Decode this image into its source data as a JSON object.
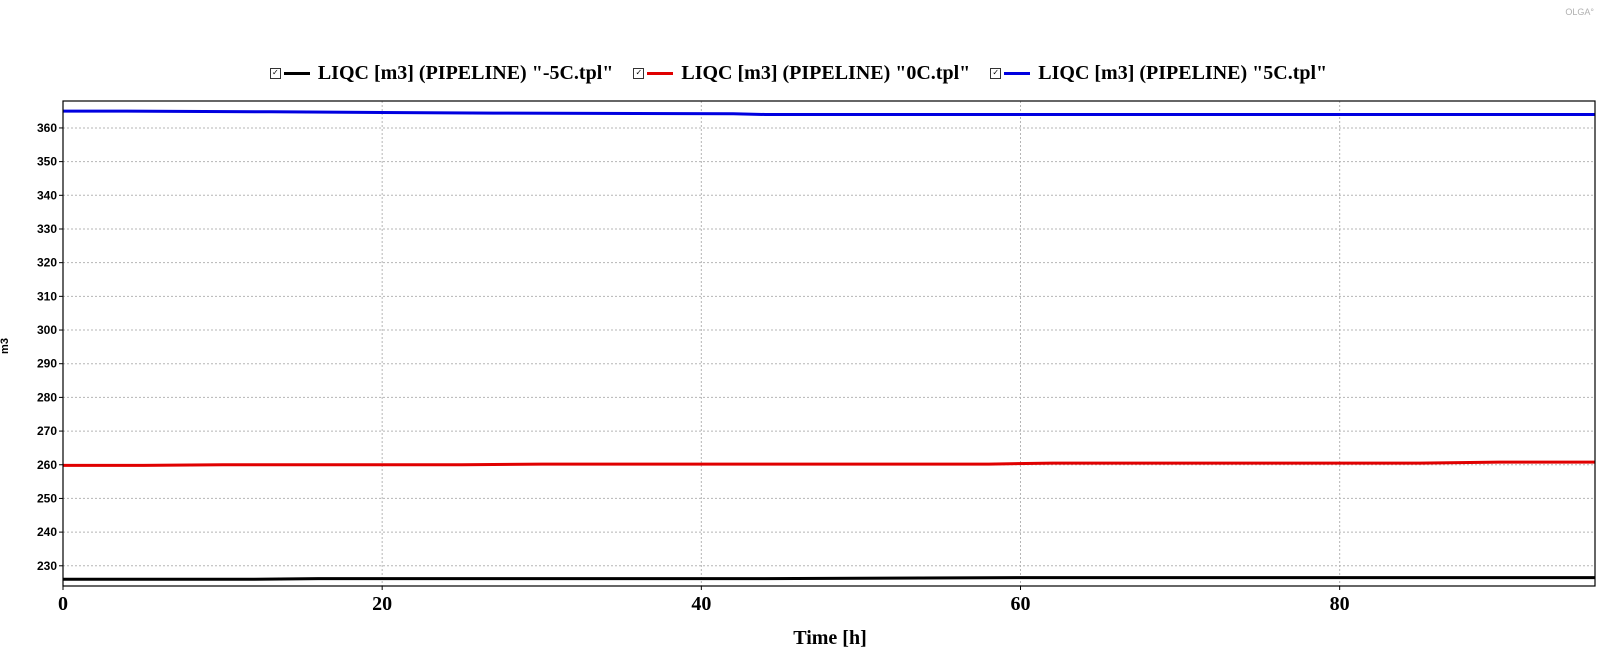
{
  "brand": "OLGA°",
  "chart_data": {
    "type": "line",
    "xlabel": "Time [h]",
    "ylabel": "m3",
    "xlim": [
      0,
      96
    ],
    "ylim": [
      224,
      368
    ],
    "x_ticks": [
      0,
      20,
      40,
      60,
      80
    ],
    "y_ticks": [
      230,
      240,
      250,
      260,
      270,
      280,
      290,
      300,
      310,
      320,
      330,
      340,
      350,
      360
    ],
    "grid": true,
    "legend_position": "top-center",
    "series": [
      {
        "name": "LIQC [m3] (PIPELINE) \"-5C.tpl\"",
        "color": "#000000",
        "x": [
          0,
          12,
          16,
          44,
          60,
          96
        ],
        "y": [
          226.0,
          226.0,
          226.2,
          226.2,
          226.5,
          226.5
        ]
      },
      {
        "name": "LIQC [m3] (PIPELINE) \"0C.tpl\"",
        "color": "#e00000",
        "x": [
          0,
          5,
          10,
          25,
          30,
          58,
          62,
          85,
          90,
          96
        ],
        "y": [
          259.8,
          259.8,
          260.0,
          260.0,
          260.2,
          260.2,
          260.5,
          260.5,
          260.8,
          260.8
        ]
      },
      {
        "name": "LIQC [m3] (PIPELINE) \"5C.tpl\"",
        "color": "#0000e0",
        "x": [
          0,
          4,
          13,
          27,
          42,
          44,
          96
        ],
        "y": [
          365.0,
          365.0,
          364.8,
          364.4,
          364.2,
          364.0,
          364.0
        ]
      }
    ]
  }
}
